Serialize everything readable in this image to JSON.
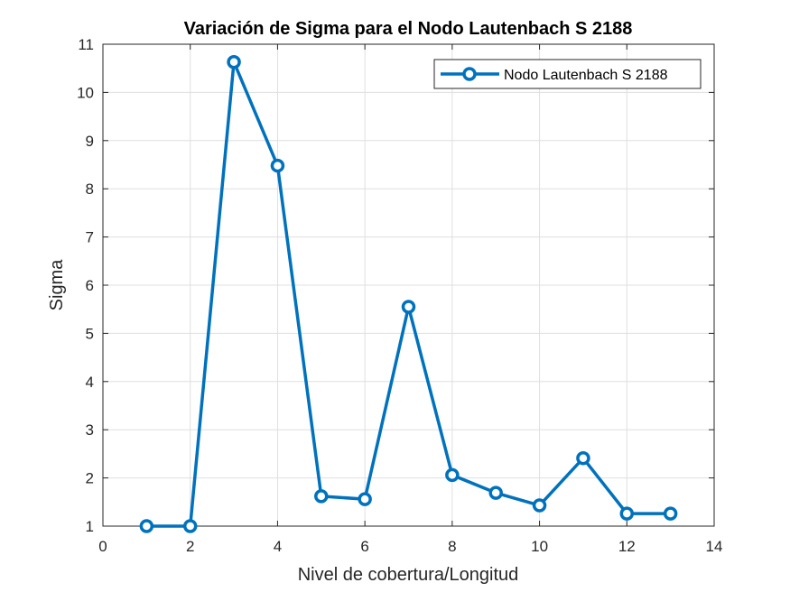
{
  "chart_data": {
    "type": "line",
    "title": "Variación de Sigma para el Nodo Lautenbach S 2188",
    "xlabel": "Nivel de cobertura/Longitud",
    "ylabel": "Sigma",
    "xlim": [
      0,
      14
    ],
    "ylim": [
      1,
      11
    ],
    "xticks": [
      0,
      2,
      4,
      6,
      8,
      10,
      12,
      14
    ],
    "yticks": [
      1,
      2,
      3,
      4,
      5,
      6,
      7,
      8,
      9,
      10,
      11
    ],
    "xtick_labels": [
      "0",
      "2",
      "4",
      "6",
      "8",
      "10",
      "12",
      "14"
    ],
    "ytick_labels": [
      "1",
      "2",
      "3",
      "4",
      "5",
      "6",
      "7",
      "8",
      "9",
      "10",
      "11"
    ],
    "grid": true,
    "legend_position": "top-right",
    "series": [
      {
        "name": "Nodo Lautenbach S 2188",
        "color": "#0072BD",
        "marker": "circle",
        "x": [
          1,
          2,
          3,
          4,
          5,
          6,
          7,
          8,
          9,
          10,
          11,
          12,
          13
        ],
        "y": [
          1.0,
          1.0,
          10.63,
          8.48,
          1.62,
          1.56,
          5.55,
          2.06,
          1.69,
          1.43,
          2.41,
          1.26,
          1.26
        ]
      }
    ]
  }
}
